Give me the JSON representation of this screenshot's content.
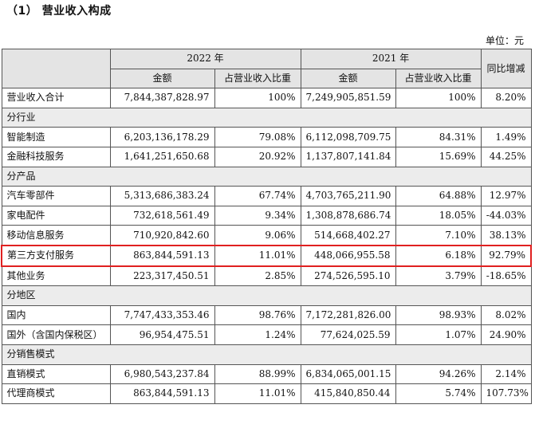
{
  "heading": "（1） 营业收入构成",
  "unit": "单位：元",
  "header": {
    "y2022": "2022 年",
    "y2021": "2021 年",
    "yoy": "同比增减",
    "amount": "金额",
    "share": "占营业收入比重"
  },
  "rows": {
    "total": {
      "label": "营业收入合计",
      "a22": "7,844,387,828.97",
      "p22": "100%",
      "a21": "7,249,905,851.59",
      "p21": "100%",
      "yoy": "8.20%"
    },
    "sec_industry": "分行业",
    "smart_mfg": {
      "label": "智能制造",
      "a22": "6,203,136,178.29",
      "p22": "79.08%",
      "a21": "6,112,098,709.75",
      "p21": "84.31%",
      "yoy": "1.49%"
    },
    "fintech": {
      "label": "金融科技服务",
      "a22": "1,641,251,650.68",
      "p22": "20.92%",
      "a21": "1,137,807,141.84",
      "p21": "15.69%",
      "yoy": "44.25%"
    },
    "sec_product": "分产品",
    "auto_parts": {
      "label": "汽车零部件",
      "a22": "5,313,686,383.24",
      "p22": "67.74%",
      "a21": "4,703,765,211.90",
      "p21": "64.88%",
      "yoy": "12.97%"
    },
    "appliance": {
      "label": "家电配件",
      "a22": "732,618,561.49",
      "p22": "9.34%",
      "a21": "1,308,878,686.74",
      "p21": "18.05%",
      "yoy": "-44.03%"
    },
    "mobile_info": {
      "label": "移动信息服务",
      "a22": "710,920,842.60",
      "p22": "9.06%",
      "a21": "514,668,402.27",
      "p21": "7.10%",
      "yoy": "38.13%"
    },
    "payment": {
      "label": "第三方支付服务",
      "a22": "863,844,591.13",
      "p22": "11.01%",
      "a21": "448,066,955.58",
      "p21": "6.18%",
      "yoy": "92.79%"
    },
    "other": {
      "label": "其他业务",
      "a22": "223,317,450.51",
      "p22": "2.85%",
      "a21": "274,526,595.10",
      "p21": "3.79%",
      "yoy": "-18.65%"
    },
    "sec_region": "分地区",
    "domestic": {
      "label": "国内",
      "a22": "7,747,433,353.46",
      "p22": "98.76%",
      "a21": "7,172,281,826.00",
      "p21": "98.93%",
      "yoy": "8.02%"
    },
    "overseas": {
      "label": "国外（含国内保税区）",
      "a22": "96,954,475.51",
      "p22": "1.24%",
      "a21": "77,624,025.59",
      "p21": "1.07%",
      "yoy": "24.90%"
    },
    "sec_sales": "分销售模式",
    "direct": {
      "label": "直销模式",
      "a22": "6,980,543,237.84",
      "p22": "88.99%",
      "a21": "6,834,065,001.15",
      "p21": "94.26%",
      "yoy": "2.14%"
    },
    "agent": {
      "label": "代理商模式",
      "a22": "863,844,591.13",
      "p22": "11.01%",
      "a21": "415,840,850.44",
      "p21": "5.74%",
      "yoy": "107.73%"
    }
  },
  "highlight_color": "#e02020"
}
